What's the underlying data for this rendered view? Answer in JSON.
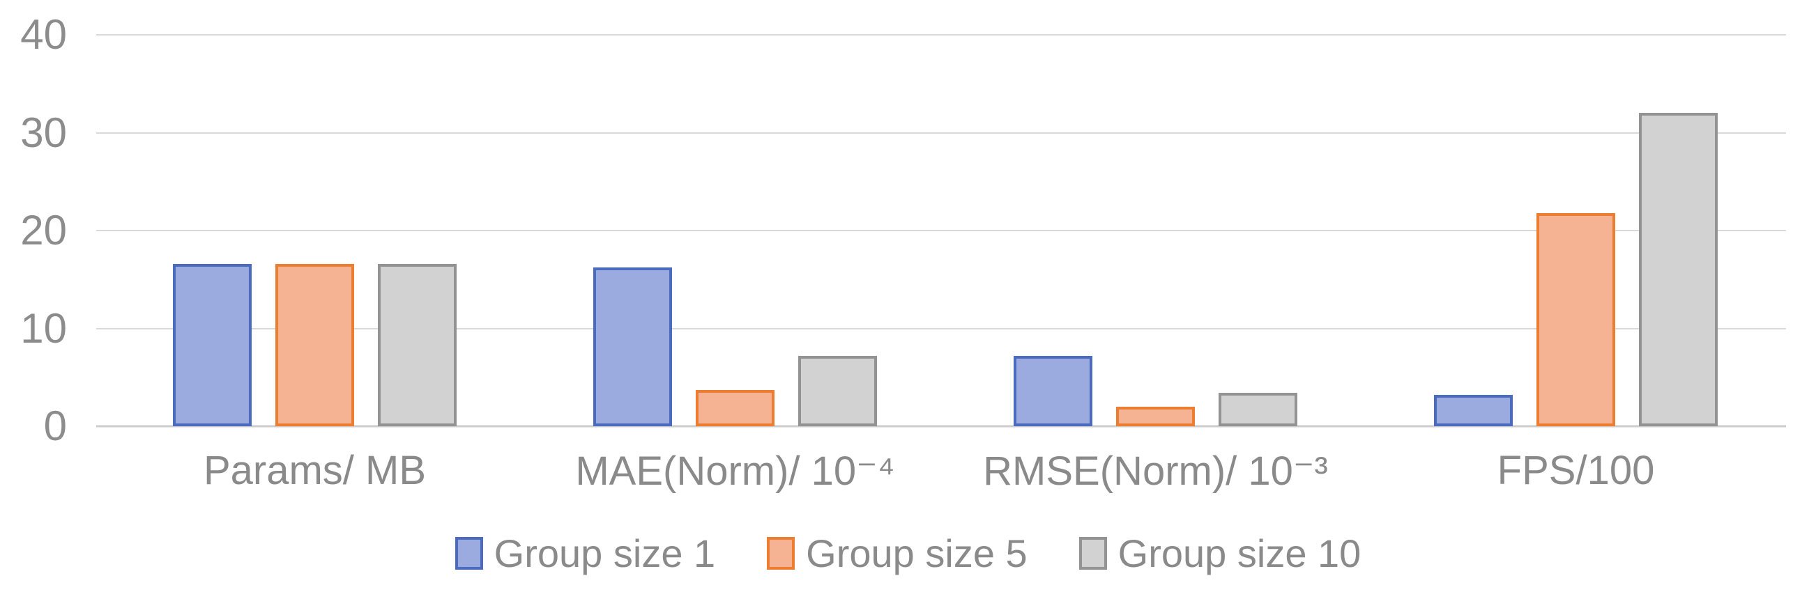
{
  "chart_data": {
    "type": "bar",
    "title": "",
    "xlabel": "",
    "ylabel": "",
    "categories": [
      "Params/ MB",
      "MAE(Norm)/ 10⁻⁴",
      "RMSE(Norm)/ 10⁻³",
      "FPS/100"
    ],
    "series": [
      {
        "name": "Group size 1",
        "fill": "#9CABDF",
        "border": "#4B6BBF",
        "values": [
          16.6,
          16.2,
          7.2,
          3.2
        ]
      },
      {
        "name": "Group size 5",
        "fill": "#F5B394",
        "border": "#ED7D31",
        "values": [
          16.6,
          3.7,
          2.0,
          21.8
        ]
      },
      {
        "name": "Group size 10",
        "fill": "#D2D2D2",
        "border": "#939393",
        "values": [
          16.6,
          7.2,
          3.4,
          32.0
        ]
      }
    ],
    "ylim": [
      0,
      40
    ],
    "yticks": [
      0,
      10,
      20,
      30,
      40
    ],
    "grid": true,
    "legend_position": "bottom",
    "colors": {
      "axis_text": "#8C8C8C",
      "gridline": "#D9D9D9",
      "background": "#FFFFFF"
    }
  }
}
